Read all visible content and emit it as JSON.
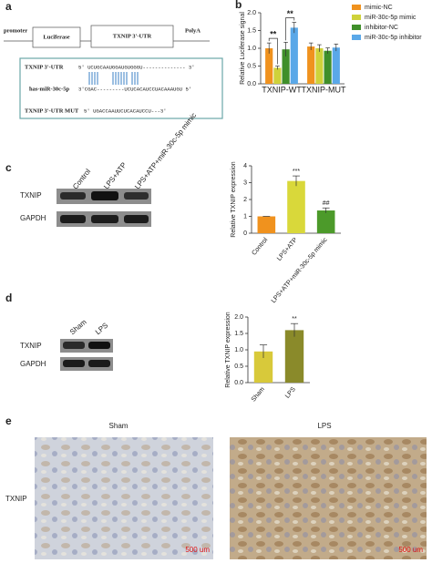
{
  "panel_labels": [
    "a",
    "b",
    "c",
    "d",
    "e"
  ],
  "construct": {
    "promoter": "promoter",
    "luciferase": "Luciferase",
    "utr": "TXNIP 3'-UTR",
    "polya": "PolyA"
  },
  "alignment": {
    "rows": [
      {
        "label": "TXNIP 3'-UTR",
        "sequence": "5' UCUGCAAUGGAUGUGGGU-------------- 3'"
      },
      {
        "label": "has-miR-30c-5p",
        "sequence": "3'CGAC---------UCUCACAUCCUACAAAUGU 5'"
      },
      {
        "label": "TXNIP 3'-UTR  MUT",
        "sequence": "5' UGACCAAUUCUCACAUCCU---3'"
      }
    ]
  },
  "blot_c": {
    "lanes": [
      "Control",
      "LPS+ATP",
      "LPS+ATP+miR-30c-5p mimic"
    ],
    "bands": [
      "TXNIP",
      "GAPDH"
    ]
  },
  "blot_d": {
    "lanes": [
      "Sham",
      "LPS"
    ],
    "bands": [
      "TXNIP",
      "GAPDH"
    ]
  },
  "ihc": {
    "columns": [
      "Sham",
      "LPS"
    ],
    "row_label": "TXNIP",
    "scale_bars": [
      "500 um",
      "500 um"
    ]
  },
  "chart_data": [
    {
      "type": "bar",
      "y_label": "Relative Luciferase signal",
      "categories": [
        "TXNIP-WT",
        "TXNIP-MUT"
      ],
      "series": [
        {
          "name": "mimic-NC",
          "color": "#f0921e",
          "values": [
            1.0,
            1.05
          ],
          "errors": [
            0.15,
            0.1
          ]
        },
        {
          "name": "miR-30c-5p mimic",
          "color": "#cfd23a",
          "values": [
            0.45,
            1.0
          ],
          "errors": [
            0.05,
            0.1
          ]
        },
        {
          "name": "inhibitor-NC",
          "color": "#3f8f2a",
          "values": [
            0.97,
            0.93
          ],
          "errors": [
            0.2,
            0.08
          ]
        },
        {
          "name": "miR-30c-5p inhibitor",
          "color": "#5aa8e8",
          "values": [
            1.58,
            1.02
          ],
          "errors": [
            0.15,
            0.1
          ]
        }
      ],
      "annotations": [
        "**",
        "**"
      ],
      "ylim": [
        0,
        2
      ],
      "yticks": [
        {
          "value": 0,
          "label": "0.0"
        },
        0.5,
        {
          "value": 1,
          "label": "1.0"
        },
        1.5,
        {
          "value": 2,
          "label": "2.0"
        }
      ]
    },
    {
      "type": "bar",
      "y_label": "Relative TXNIP expression",
      "categories": [
        "Control",
        "LPS+ATP",
        "LPS+ATP+miR-30c-5p mimic"
      ],
      "values": [
        1.0,
        3.1,
        1.35
      ],
      "errors": [
        0,
        0.3,
        0.15
      ],
      "colors": [
        "#f0921e",
        "#d9d83a",
        "#4c9a2a"
      ],
      "markers": [
        null,
        "***",
        "##"
      ],
      "ylim": [
        0,
        4
      ],
      "yticks": [
        0,
        1,
        2,
        3,
        4
      ]
    },
    {
      "type": "bar",
      "y_label": "Relative TXNIP expression",
      "categories": [
        "Sham",
        "LPS"
      ],
      "values": [
        0.95,
        1.6
      ],
      "errors": [
        0.2,
        0.2
      ],
      "colors": [
        "#d8c93a",
        "#8a8a2a"
      ],
      "markers": [
        null,
        "**"
      ],
      "ylim": [
        0,
        2
      ],
      "yticks": [
        {
          "value": 0,
          "label": "0.0"
        },
        0.5,
        {
          "value": 1,
          "label": "1.0"
        },
        1.5,
        {
          "value": 2,
          "label": "2.0"
        }
      ]
    }
  ]
}
